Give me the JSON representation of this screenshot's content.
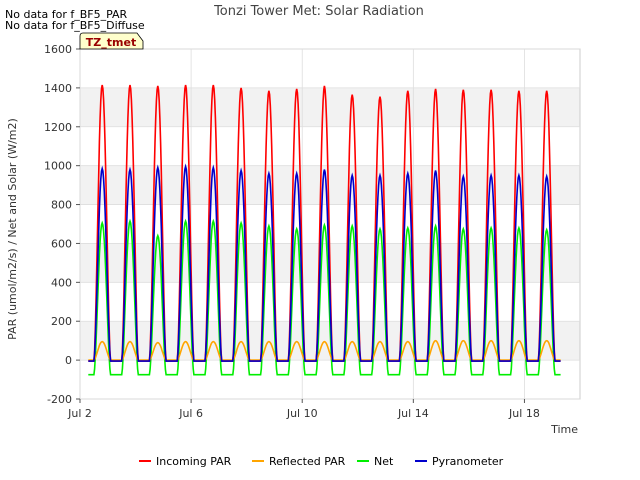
{
  "notes": [
    "No data for f_BF5_PAR",
    "No data for f_BF5_Diffuse"
  ],
  "site_badge": "TZ_tmet",
  "colors": {
    "incoming_par": "#ff0000",
    "reflected_par": "#ffa500",
    "net": "#00ee00",
    "pyranometer": "#0000cc",
    "band": "#f2f2f2",
    "badge_fill": "#ffffcc",
    "badge_text": "#990000"
  },
  "chart_data": {
    "type": "line",
    "title": "Tonzi Tower Met: Solar Radiation",
    "xlabel": "Time",
    "ylabel": "PAR (umol/m2/s) / Net and Solar (W/m2)",
    "xlim": [
      0,
      18
    ],
    "ylim": [
      -200,
      1600
    ],
    "yticks": [
      -200,
      0,
      200,
      400,
      600,
      800,
      1000,
      1200,
      1400,
      1600
    ],
    "xticks": [
      {
        "value": 0,
        "label": "Jul 2"
      },
      {
        "value": 4,
        "label": "Jul 6"
      },
      {
        "value": 8,
        "label": "Jul 10"
      },
      {
        "value": 12,
        "label": "Jul 14"
      },
      {
        "value": 16,
        "label": "Jul 18"
      }
    ],
    "grid": true,
    "legend_position": "bottom",
    "day_start": 0.3,
    "day_count": 17,
    "series": [
      {
        "name": "Incoming PAR",
        "key": "incoming_par",
        "peaks": [
          1415,
          1415,
          1410,
          1415,
          1415,
          1400,
          1385,
          1395,
          1410,
          1365,
          1355,
          1385,
          1395,
          1390,
          1390,
          1385,
          1385
        ],
        "night": -5
      },
      {
        "name": "Reflected PAR",
        "key": "reflected_par",
        "peaks": [
          95,
          95,
          90,
          95,
          95,
          95,
          95,
          95,
          95,
          95,
          95,
          95,
          100,
          100,
          100,
          100,
          100
        ],
        "night": 0
      },
      {
        "name": "Net",
        "key": "net",
        "peaks": [
          705,
          715,
          640,
          715,
          715,
          705,
          690,
          675,
          695,
          690,
          675,
          680,
          690,
          675,
          680,
          680,
          670
        ],
        "night": -75
      },
      {
        "name": "Pyranometer",
        "key": "pyranometer",
        "peaks": [
          985,
          980,
          990,
          995,
          990,
          975,
          960,
          960,
          980,
          950,
          950,
          960,
          975,
          945,
          950,
          950,
          945
        ],
        "night": -5
      }
    ]
  }
}
